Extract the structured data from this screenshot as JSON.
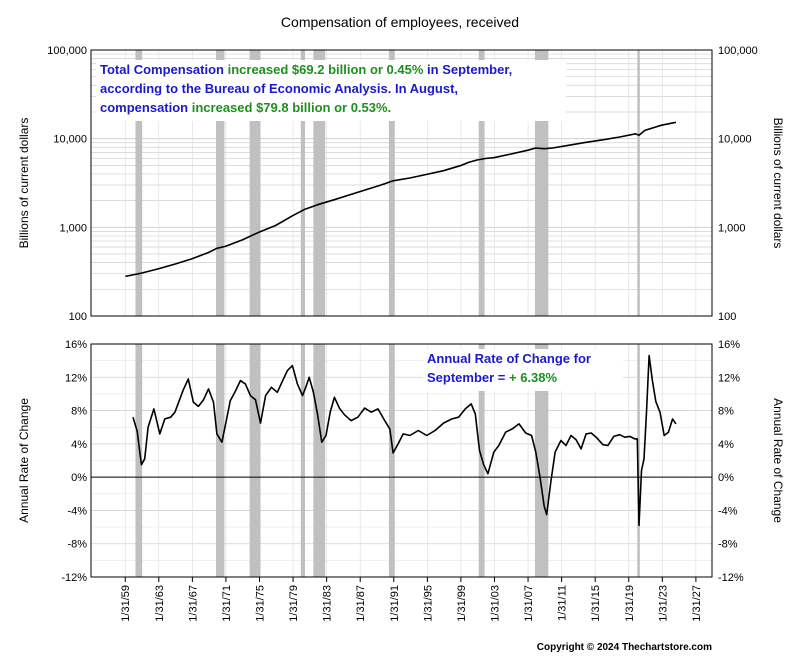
{
  "title": "Compensation of employees, received",
  "copyright": "Copyright © 2024 Thechartstore.com",
  "colors": {
    "line": "#000000",
    "recession": "#c0c0c0",
    "blue_text": "#1a1acc",
    "green_text": "#1e8f1e",
    "grid": "#d0d0d0"
  },
  "top_annotation": {
    "lines": [
      [
        {
          "t": "Total Compensation ",
          "c": "blue"
        },
        {
          "t": "increased $69.2 billion or 0.45%",
          "c": "green"
        },
        {
          "t": " in September,",
          "c": "blue"
        }
      ],
      [
        {
          "t": "according to the Bureau of Economic Analysis.  In August,",
          "c": "blue"
        }
      ],
      [
        {
          "t": "compensation ",
          "c": "blue"
        },
        {
          "t": "increased $79.8 billion or 0.53%.",
          "c": "green"
        }
      ]
    ]
  },
  "bottom_annotation": {
    "lines": [
      [
        {
          "t": "Annual Rate of Change for",
          "c": "blue"
        }
      ],
      [
        {
          "t": "September = ",
          "c": "blue"
        },
        {
          "t": "+ 6.38%",
          "c": "green"
        }
      ]
    ]
  },
  "recessions": [
    [
      1960.3,
      1961.1
    ],
    [
      1969.9,
      1970.9
    ],
    [
      1973.9,
      1975.2
    ],
    [
      1980.0,
      1980.5
    ],
    [
      1981.5,
      1982.9
    ],
    [
      1990.5,
      1991.2
    ],
    [
      2001.2,
      2001.9
    ],
    [
      2007.9,
      2009.5
    ],
    [
      2020.1,
      2020.4
    ]
  ],
  "chart_data": [
    {
      "type": "line",
      "name": "compensation-level",
      "scale": "log",
      "ylabel": "Billions of current dollars",
      "ylim": [
        100,
        100000
      ],
      "yticks": [
        "100",
        "1,000",
        "10,000",
        "100,000"
      ],
      "ytick_values": [
        100,
        1000,
        10000,
        100000
      ],
      "xlim": [
        1955.0,
        2029.0
      ],
      "x": [
        1959.1,
        1961,
        1963,
        1965,
        1967,
        1969,
        1970,
        1971,
        1973,
        1975,
        1977,
        1979,
        1980.5,
        1982,
        1984,
        1986,
        1988,
        1990,
        1991,
        1993,
        1995,
        1997,
        1999,
        2000,
        2001,
        2002,
        2003,
        2005,
        2007,
        2008,
        2009,
        2010,
        2012,
        2014,
        2016,
        2018,
        2019.9,
        2020.3,
        2021,
        2022,
        2023,
        2024.7
      ],
      "values": [
        280,
        305,
        340,
        385,
        440,
        520,
        580,
        610,
        720,
        880,
        1050,
        1350,
        1600,
        1800,
        2050,
        2350,
        2700,
        3100,
        3350,
        3600,
        3950,
        4350,
        4950,
        5400,
        5750,
        5980,
        6100,
        6700,
        7400,
        7850,
        7700,
        7850,
        8450,
        9100,
        9700,
        10450,
        11350,
        10900,
        12400,
        13300,
        14200,
        15300
      ]
    },
    {
      "type": "line",
      "name": "annual-rate-of-change",
      "ylabel": "Annual Rate of Change",
      "ylim": [
        -12,
        16
      ],
      "yticks": [
        "-12%",
        "-8%",
        "-4%",
        "0%",
        "4%",
        "8%",
        "12%",
        "16%"
      ],
      "ytick_values": [
        -12,
        -8,
        -4,
        0,
        4,
        8,
        12,
        16
      ],
      "xlim": [
        1955.0,
        2029.0
      ],
      "xtick_labels": [
        "1/31/59",
        "1/31/63",
        "1/31/67",
        "1/31/71",
        "1/31/75",
        "1/31/79",
        "1/31/83",
        "1/31/87",
        "1/31/91",
        "1/31/95",
        "1/31/99",
        "1/31/03",
        "1/31/07",
        "1/31/11",
        "1/31/15",
        "1/31/19",
        "1/31/23",
        "1/31/27"
      ],
      "xtick_values": [
        1959.08,
        1963.08,
        1967.08,
        1971.08,
        1975.08,
        1979.08,
        1983.08,
        1987.08,
        1991.08,
        1995.08,
        1999.08,
        2003.08,
        2007.08,
        2011.08,
        2015.08,
        2019.08,
        2023.08,
        2027.08
      ],
      "x": [
        1960.0,
        1960.5,
        1961.0,
        1961.4,
        1961.8,
        1962.5,
        1963.2,
        1963.8,
        1964.5,
        1965.0,
        1966.0,
        1966.6,
        1967.2,
        1967.8,
        1968.4,
        1969.0,
        1969.6,
        1970.0,
        1970.6,
        1971.0,
        1971.6,
        1972.2,
        1972.8,
        1973.4,
        1974.0,
        1974.6,
        1975.2,
        1975.8,
        1976.5,
        1977.2,
        1977.8,
        1978.4,
        1979.0,
        1979.6,
        1980.2,
        1980.6,
        1981.0,
        1981.5,
        1982.0,
        1982.5,
        1983.0,
        1983.5,
        1984.0,
        1984.6,
        1985.2,
        1986.0,
        1986.8,
        1987.6,
        1988.4,
        1989.2,
        1990.0,
        1990.6,
        1991.0,
        1991.6,
        1992.2,
        1993.0,
        1994.0,
        1995.0,
        1996.0,
        1997.0,
        1998.0,
        1998.8,
        1999.6,
        2000.3,
        2000.8,
        2001.3,
        2001.8,
        2002.3,
        2003.0,
        2003.6,
        2004.4,
        2005.2,
        2006.0,
        2006.8,
        2007.5,
        2008.0,
        2008.5,
        2009.0,
        2009.3,
        2009.8,
        2010.3,
        2011.0,
        2011.6,
        2012.2,
        2012.8,
        2013.4,
        2014.0,
        2014.6,
        2015.2,
        2016.0,
        2016.6,
        2017.3,
        2018.0,
        2018.6,
        2019.2,
        2019.8,
        2020.1,
        2020.3,
        2020.6,
        2020.9,
        2021.2,
        2021.5,
        2021.9,
        2022.3,
        2022.8,
        2023.3,
        2023.8,
        2024.3,
        2024.7
      ],
      "values": [
        7.2,
        5.5,
        1.5,
        2.2,
        6.0,
        8.2,
        5.2,
        7.0,
        7.2,
        7.8,
        10.5,
        11.8,
        9.0,
        8.5,
        9.3,
        10.6,
        9.0,
        5.2,
        4.2,
        6.2,
        9.2,
        10.3,
        11.6,
        11.2,
        9.8,
        9.3,
        6.5,
        9.8,
        10.8,
        10.2,
        11.5,
        12.8,
        13.4,
        11.2,
        9.8,
        10.8,
        12.0,
        10.2,
        7.5,
        4.2,
        5.0,
        7.8,
        9.6,
        8.3,
        7.5,
        6.8,
        7.2,
        8.3,
        7.8,
        8.2,
        6.8,
        5.8,
        2.9,
        4.0,
        5.2,
        5.0,
        5.6,
        5.0,
        5.6,
        6.5,
        7.0,
        7.2,
        8.2,
        8.8,
        7.6,
        3.2,
        1.5,
        0.4,
        3.0,
        3.8,
        5.4,
        5.8,
        6.4,
        5.3,
        5.0,
        3.0,
        0.0,
        -3.5,
        -4.5,
        -0.5,
        3.0,
        4.4,
        3.8,
        5.0,
        4.5,
        3.4,
        5.2,
        5.3,
        4.8,
        3.9,
        3.8,
        4.9,
        5.1,
        4.8,
        4.9,
        4.6,
        4.6,
        -5.8,
        0.8,
        2.2,
        7.8,
        14.6,
        11.6,
        9.1,
        7.8,
        5.0,
        5.4,
        7.0,
        6.4
      ]
    }
  ]
}
